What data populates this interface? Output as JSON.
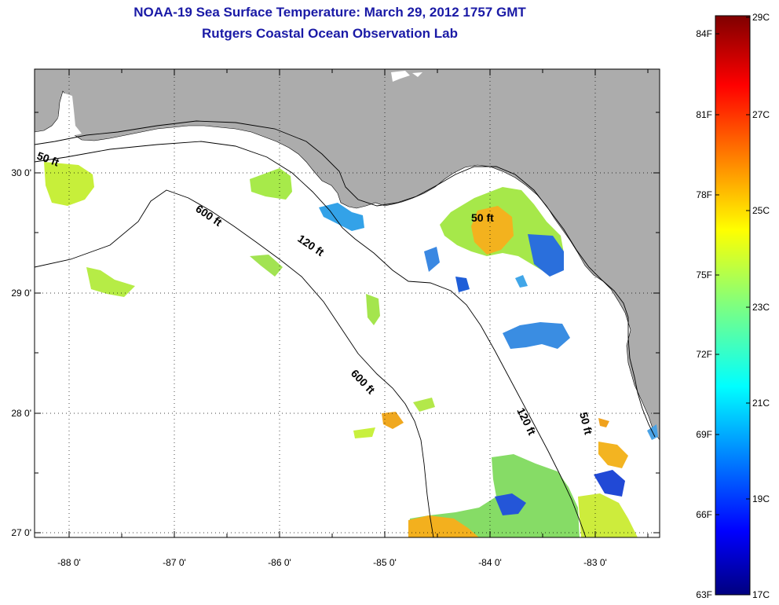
{
  "header": {
    "title": "NOAA-19 Sea Surface Temperature:  March 29, 2012 1757 GMT",
    "subtitle": "Rutgers Coastal Ocean Observation Lab"
  },
  "map": {
    "lat_labels": [
      "30 0'",
      "29 0'",
      "28 0'",
      "27 0'"
    ],
    "lon_labels": [
      "-88 0'",
      "-87 0'",
      "-86 0'",
      "-85 0'",
      "-84 0'",
      "-83 0'"
    ],
    "contour_labels": {
      "c50_nw": "50 ft",
      "c50_bigbend": "50 ft",
      "c50_south": "50 ft",
      "c120_north": "120 ft",
      "c120_south": "120 ft",
      "c600_north": "600 ft",
      "c600_south": "600 ft"
    },
    "colors": {
      "land": "#acacac",
      "water": "#ffffff"
    }
  },
  "colorbar": {
    "f_labels": [
      "84F",
      "81F",
      "78F",
      "75F",
      "72F",
      "69F",
      "66F",
      "63F"
    ],
    "c_labels": [
      "29C",
      "27C",
      "25C",
      "23C",
      "21C",
      "19C",
      "17C"
    ],
    "min_c": 17,
    "max_c": 29
  }
}
